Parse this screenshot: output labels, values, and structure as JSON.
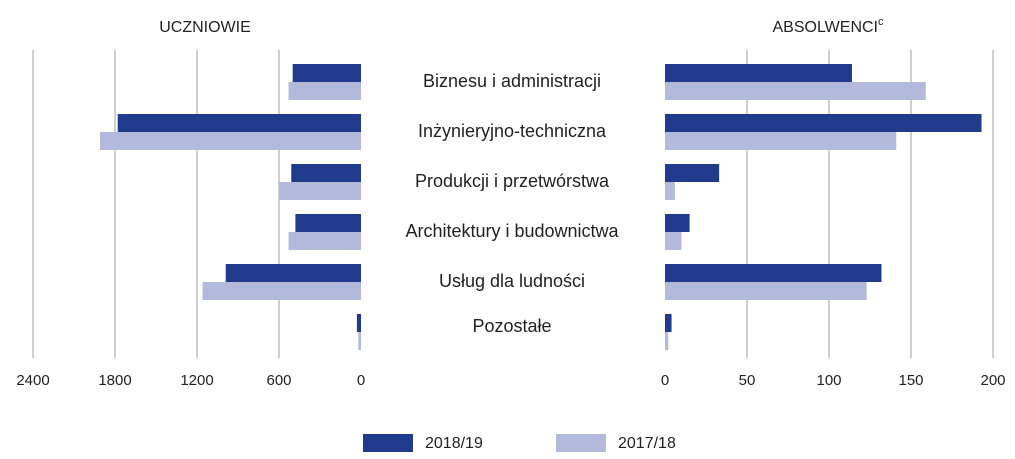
{
  "chart_data": [
    {
      "type": "hbar",
      "title": "UCZNIOWIE",
      "categories": [
        "Biznesu i administracji",
        "Inżynieryjno-techniczna",
        "Produkcji i przetwórstwa",
        "Architektury i budownictwa",
        "Usług dla ludności",
        "Pozostałe"
      ],
      "series": [
        {
          "name": "2018/19",
          "color": "#203a8c",
          "values": [
            500,
            1780,
            510,
            480,
            990,
            30
          ]
        },
        {
          "name": "2017/18",
          "color": "#b3b9da",
          "values": [
            530,
            1910,
            600,
            530,
            1160,
            20
          ]
        }
      ],
      "xlim": [
        2400,
        0
      ],
      "xticks": [
        2400,
        1800,
        1200,
        600,
        0
      ],
      "grid": true
    },
    {
      "type": "hbar",
      "title": "ABSOLWENCI",
      "title_superscript": "c",
      "series": [
        {
          "color": "#203a8c",
          "values": [
            114,
            193,
            33,
            15,
            132,
            4
          ]
        },
        {
          "color": "#b3b9da",
          "values": [
            159,
            141,
            6,
            10,
            123,
            2
          ]
        }
      ],
      "xlim": [
        0,
        200
      ],
      "xticks": [
        0,
        50,
        100,
        150,
        200
      ],
      "grid": true
    }
  ]
}
